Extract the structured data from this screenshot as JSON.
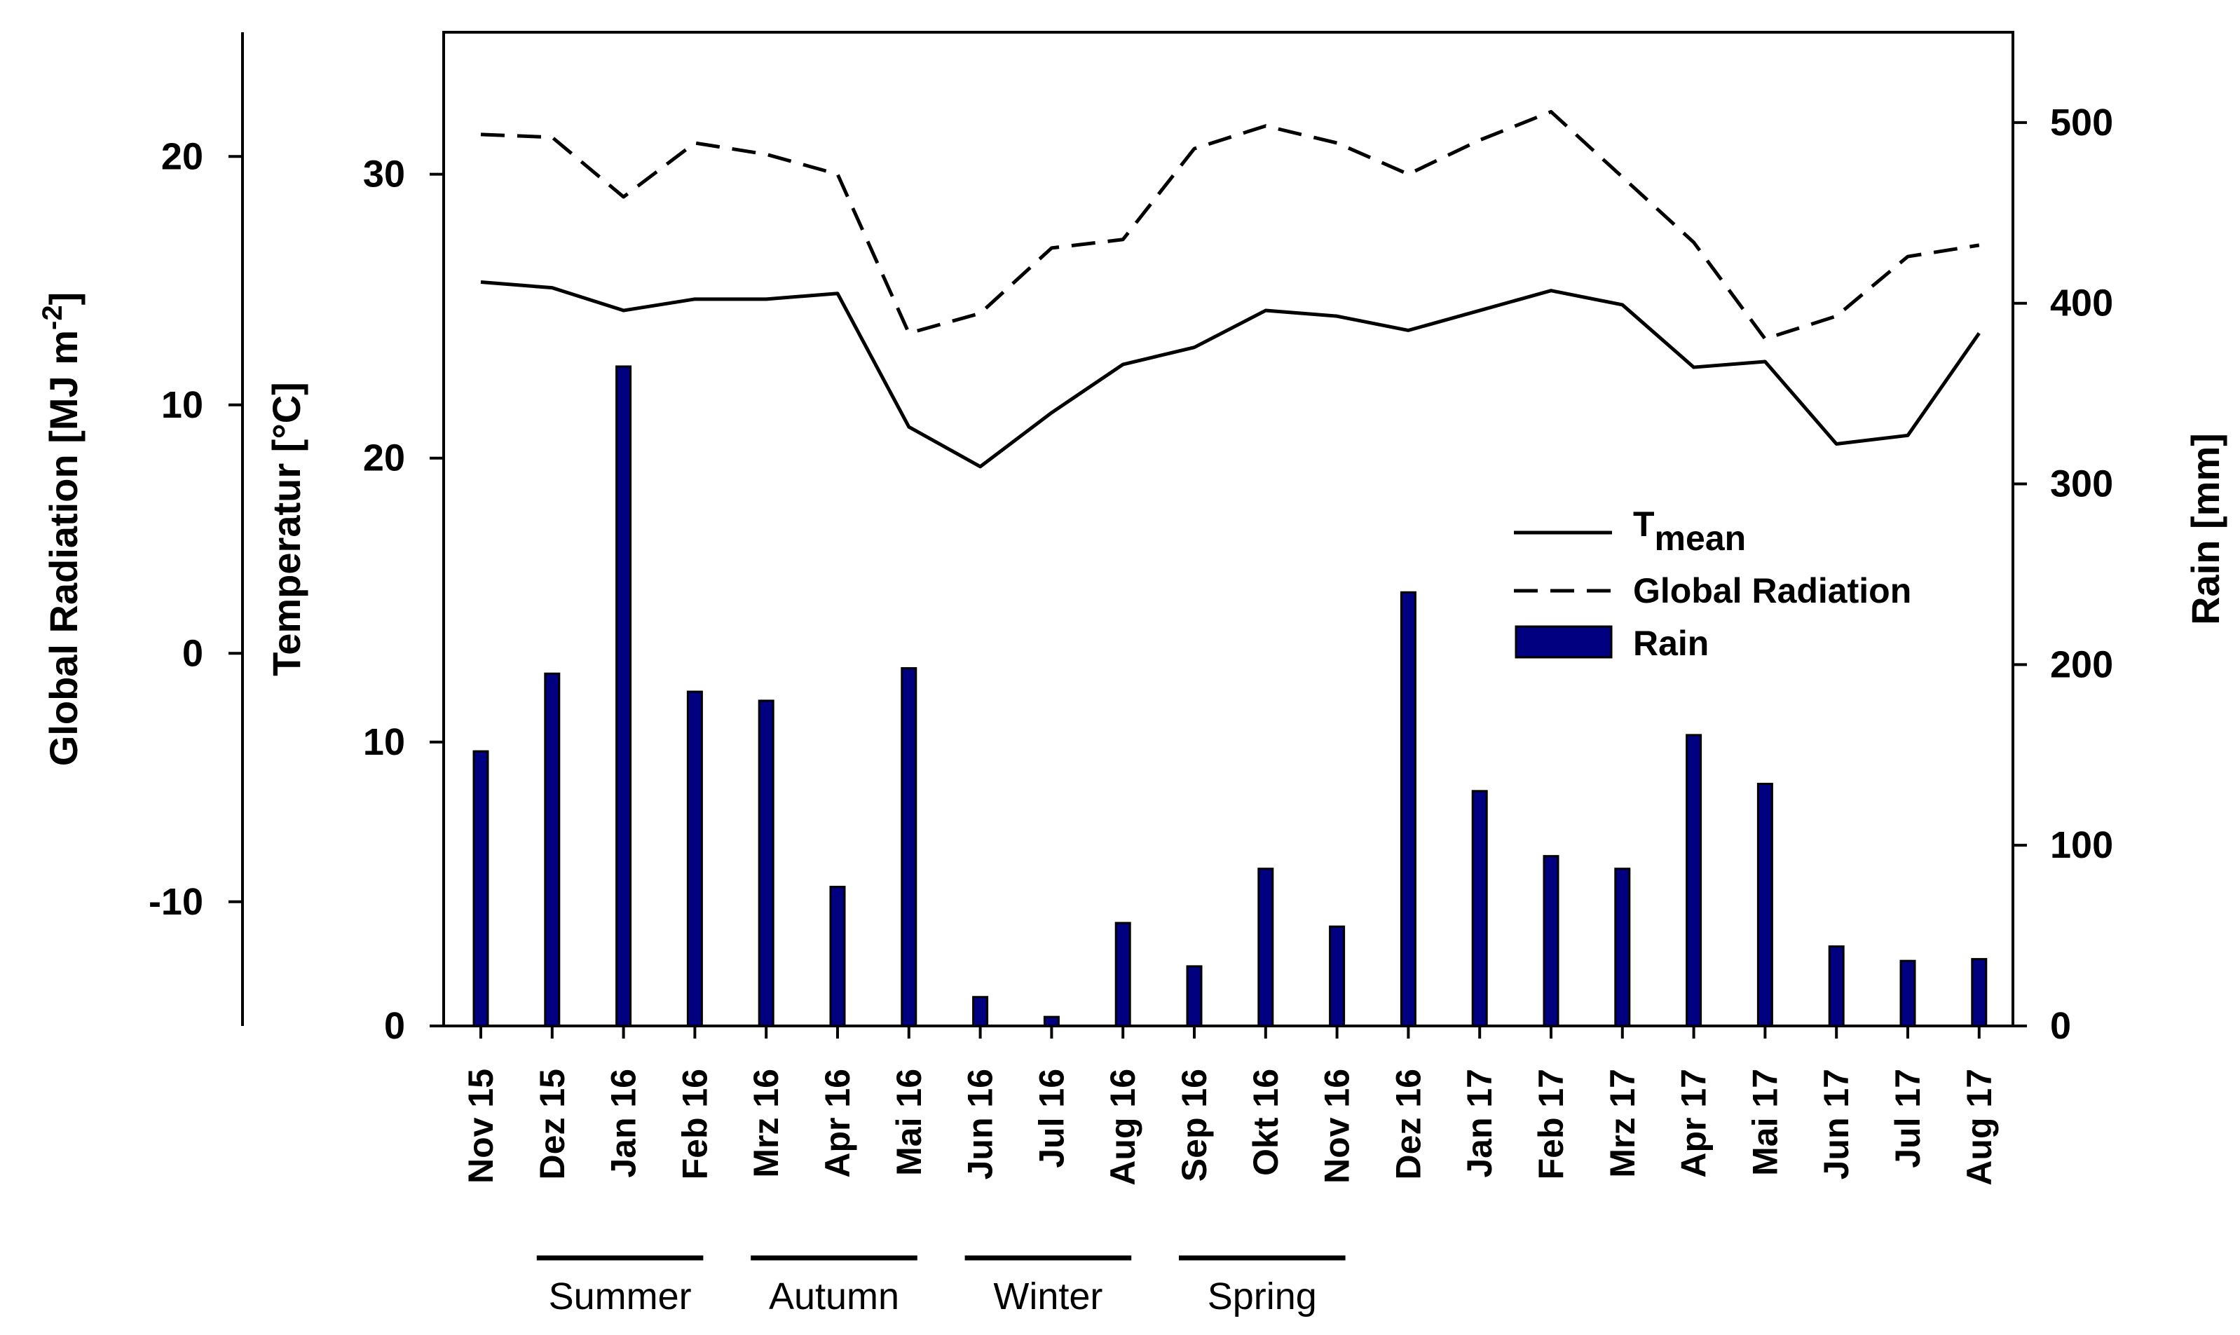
{
  "chart_data": {
    "type": "bar+line",
    "categories": [
      "Nov 15",
      "Dez 15",
      "Jan 16",
      "Feb 16",
      "Mrz 16",
      "Apr 16",
      "Mai 16",
      "Jun 16",
      "Jul 16",
      "Aug 16",
      "Sep 16",
      "Okt 16",
      "Nov 16",
      "Dez 16",
      "Jan 17",
      "Feb 17",
      "Mrz 17",
      "Apr 17",
      "Mai 17",
      "Jun 17",
      "Jul 17",
      "Aug 17"
    ],
    "series": [
      {
        "name": "Rain",
        "type": "bar",
        "axis": "rain",
        "color": "#000080",
        "values": [
          152,
          195,
          365,
          185,
          180,
          77,
          198,
          16,
          5,
          57,
          33,
          87,
          55,
          240,
          130,
          94,
          87,
          161,
          134,
          44,
          36,
          37
        ]
      },
      {
        "name": "T_mean",
        "type": "line",
        "style": "solid",
        "axis": "temperature",
        "values": [
          26.2,
          26.0,
          25.2,
          25.6,
          25.6,
          25.8,
          21.1,
          19.7,
          21.6,
          23.3,
          23.9,
          25.2,
          25.0,
          24.5,
          25.2,
          25.9,
          25.4,
          23.2,
          23.4,
          20.5,
          20.8,
          24.4
        ]
      },
      {
        "name": "Global Radiation",
        "type": "line",
        "style": "dashed",
        "axis": "temperature",
        "values": [
          31.4,
          31.3,
          29.2,
          31.1,
          30.7,
          30.0,
          24.4,
          25.1,
          27.4,
          27.7,
          30.9,
          31.7,
          31.1,
          30.0,
          31.2,
          32.2,
          29.9,
          27.6,
          24.2,
          25.0,
          27.1,
          27.5
        ]
      }
    ],
    "axes": {
      "radiation": {
        "label_main": "Global Radiation [MJ m",
        "label_sup": "-2",
        "label_end": "]",
        "ticks": [
          "20",
          "10",
          "0",
          "-10"
        ],
        "tick_values": [
          20,
          10,
          0,
          -10
        ],
        "range": [
          -15,
          25
        ]
      },
      "temperature": {
        "label": "Temperatur [°C]",
        "ticks": [
          "30",
          "20",
          "10",
          "0"
        ],
        "tick_values": [
          30,
          20,
          10,
          0
        ],
        "range": [
          0,
          35
        ]
      },
      "rain": {
        "label": "Rain [mm]",
        "ticks": [
          "500",
          "400",
          "300",
          "200",
          "100",
          "0"
        ],
        "tick_values": [
          500,
          400,
          300,
          200,
          100,
          0
        ],
        "range": [
          0,
          550
        ]
      }
    },
    "legend": {
      "placement": "center-right",
      "tmean_main": "T",
      "tmean_sub": "mean",
      "radiation": "Global Radiation",
      "rain": "Rain"
    },
    "seasons": [
      {
        "label": "Summer",
        "from": 1,
        "to": 3
      },
      {
        "label": "Autumn",
        "from": 4,
        "to": 6
      },
      {
        "label": "Winter",
        "from": 7,
        "to": 9
      },
      {
        "label": "Spring",
        "from": 10,
        "to": 12
      }
    ],
    "colors": {
      "bar": "#000080",
      "line": "#000000"
    }
  }
}
